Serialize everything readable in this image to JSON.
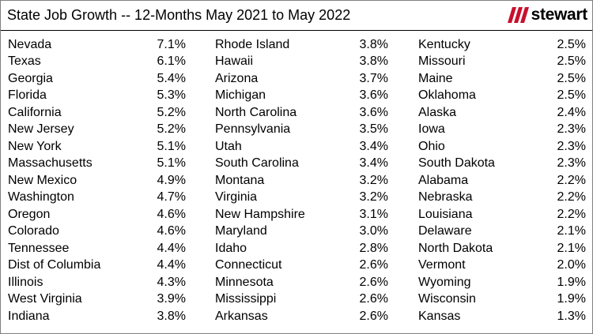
{
  "header": {
    "title": "State Job Growth -- 12-Months May 2021 to May 2022",
    "logo_text": "stewart",
    "logo_color": "#c8102e"
  },
  "chart_data": {
    "type": "table",
    "title": "State Job Growth -- 12-Months May 2021 to May 2022",
    "columns": [
      [
        {
          "state": "Nevada",
          "value": "7.1%"
        },
        {
          "state": "Texas",
          "value": "6.1%"
        },
        {
          "state": "Georgia",
          "value": "5.4%"
        },
        {
          "state": "Florida",
          "value": "5.3%"
        },
        {
          "state": "California",
          "value": "5.2%"
        },
        {
          "state": "New Jersey",
          "value": "5.2%"
        },
        {
          "state": "New York",
          "value": "5.1%"
        },
        {
          "state": "Massachusetts",
          "value": "5.1%"
        },
        {
          "state": "New Mexico",
          "value": "4.9%"
        },
        {
          "state": "Washington",
          "value": "4.7%"
        },
        {
          "state": "Oregon",
          "value": "4.6%"
        },
        {
          "state": "Colorado",
          "value": "4.6%"
        },
        {
          "state": "Tennessee",
          "value": "4.4%"
        },
        {
          "state": "Dist of Columbia",
          "value": "4.4%"
        },
        {
          "state": "Illinois",
          "value": "4.3%"
        },
        {
          "state": "West Virginia",
          "value": "3.9%"
        },
        {
          "state": "Indiana",
          "value": "3.8%"
        }
      ],
      [
        {
          "state": "Rhode Island",
          "value": "3.8%"
        },
        {
          "state": "Hawaii",
          "value": "3.8%"
        },
        {
          "state": "Arizona",
          "value": "3.7%"
        },
        {
          "state": "Michigan",
          "value": "3.6%"
        },
        {
          "state": "North Carolina",
          "value": "3.6%"
        },
        {
          "state": "Pennsylvania",
          "value": "3.5%"
        },
        {
          "state": "Utah",
          "value": "3.4%"
        },
        {
          "state": "South Carolina",
          "value": "3.4%"
        },
        {
          "state": "Montana",
          "value": "3.2%"
        },
        {
          "state": "Virginia",
          "value": "3.2%"
        },
        {
          "state": "New Hampshire",
          "value": "3.1%"
        },
        {
          "state": "Maryland",
          "value": "3.0%"
        },
        {
          "state": "Idaho",
          "value": "2.8%"
        },
        {
          "state": "Connecticut",
          "value": "2.6%"
        },
        {
          "state": "Minnesota",
          "value": "2.6%"
        },
        {
          "state": "Mississippi",
          "value": "2.6%"
        },
        {
          "state": "Arkansas",
          "value": "2.6%"
        }
      ],
      [
        {
          "state": "Kentucky",
          "value": "2.5%"
        },
        {
          "state": "Missouri",
          "value": "2.5%"
        },
        {
          "state": "Maine",
          "value": "2.5%"
        },
        {
          "state": "Oklahoma",
          "value": "2.5%"
        },
        {
          "state": "Alaska",
          "value": "2.4%"
        },
        {
          "state": "Iowa",
          "value": "2.3%"
        },
        {
          "state": "Ohio",
          "value": "2.3%"
        },
        {
          "state": "South Dakota",
          "value": "2.3%"
        },
        {
          "state": "Alabama",
          "value": "2.2%"
        },
        {
          "state": "Nebraska",
          "value": "2.2%"
        },
        {
          "state": "Louisiana",
          "value": "2.2%"
        },
        {
          "state": "Delaware",
          "value": "2.1%"
        },
        {
          "state": "North Dakota",
          "value": "2.1%"
        },
        {
          "state": "Vermont",
          "value": "2.0%"
        },
        {
          "state": "Wyoming",
          "value": "1.9%"
        },
        {
          "state": "Wisconsin",
          "value": "1.9%"
        },
        {
          "state": "Kansas",
          "value": "1.3%"
        }
      ]
    ]
  }
}
